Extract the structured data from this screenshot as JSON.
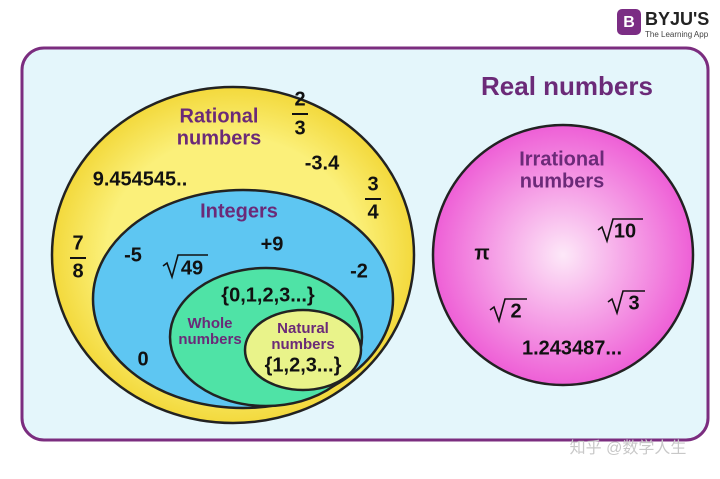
{
  "brand": {
    "name": "BYJU'S",
    "tagline": "The Learning App",
    "icon": "B"
  },
  "title": "Real numbers",
  "rational": {
    "label": [
      "Rational",
      "numbers"
    ],
    "examples": {
      "f23": [
        "2",
        "3"
      ],
      "neg": "-3.4",
      "dec": "9.454545..",
      "f34": [
        "3",
        "4"
      ],
      "f78": [
        "7",
        "8"
      ]
    }
  },
  "integers": {
    "label": "Integers",
    "examples": {
      "neg5": "-5",
      "pos9": "+9",
      "root": "49",
      "neg2": "-2",
      "zero": "0"
    }
  },
  "whole": {
    "label": [
      "Whole",
      "numbers"
    ],
    "set": "{0,1,2,3...}"
  },
  "natural": {
    "label": [
      "Natural",
      "numbers"
    ],
    "set": "{1,2,3...}"
  },
  "irrational": {
    "label": [
      "Irrational",
      "numbers"
    ],
    "examples": {
      "pi": "π",
      "r10": "10",
      "r2": "2",
      "r3": "3",
      "dec": "1.243487..."
    }
  },
  "watermark": "知乎 @数学人生"
}
